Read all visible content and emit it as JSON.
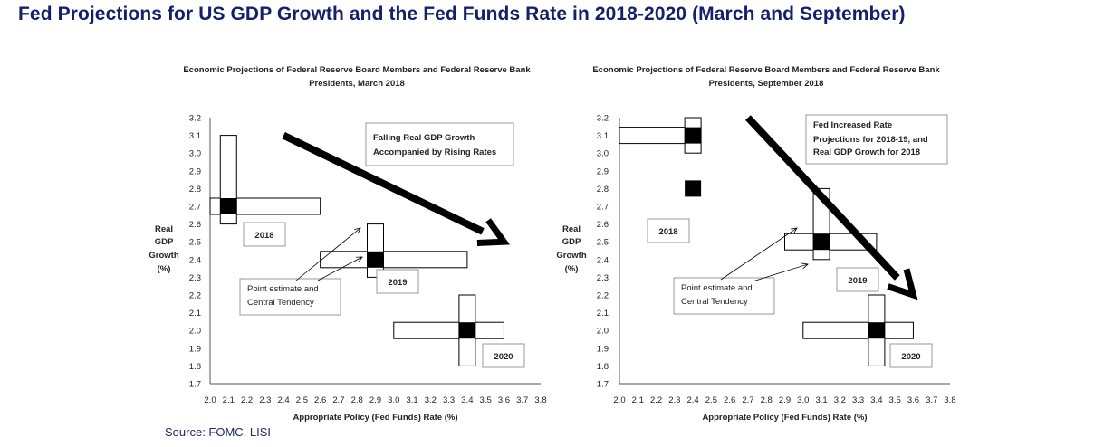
{
  "page": {
    "title": "Fed Projections for US GDP Growth and the Fed Funds Rate in 2018-2020 (March and September)",
    "source": "Source: FOMC, LISI"
  },
  "colors": {
    "title": "#14206b",
    "ink": "#000000",
    "box_border": "#999999"
  },
  "chart_data": [
    {
      "type": "scatter",
      "title_lines": [
        "Economic Projections of Federal Reserve Board Members and Federal Reserve Bank",
        "Presidents, March 2018"
      ],
      "ylabel_lines": [
        "Real",
        "GDP",
        "Growth",
        "(%)"
      ],
      "xlabel": "Appropriate Policy (Fed Funds) Rate (%)",
      "x_ticks": [
        "2.0",
        "2.1",
        "2.2",
        "2.3",
        "2.4",
        "2.5",
        "2.6",
        "2.7",
        "2.8",
        "2.9",
        "3.0",
        "3.1",
        "3.2",
        "3.3",
        "3.4",
        "3.5",
        "3.6",
        "3.7",
        "3.8"
      ],
      "y_ticks": [
        "3.2",
        "3.1",
        "3.0",
        "2.9",
        "2.8",
        "2.7",
        "2.6",
        "2.5",
        "2.4",
        "2.3",
        "2.2",
        "2.1",
        "2.0",
        "1.9",
        "1.8",
        "1.7"
      ],
      "xlim": [
        2.0,
        3.8
      ],
      "ylim": [
        1.7,
        3.2
      ],
      "grid": false,
      "series": [
        {
          "name": "2018",
          "point": [
            2.1,
            2.7
          ],
          "rate_range": [
            2.0,
            2.6
          ],
          "growth_range": [
            2.6,
            3.1
          ]
        },
        {
          "name": "2019",
          "point": [
            2.9,
            2.4
          ],
          "rate_range": [
            2.6,
            3.4
          ],
          "growth_range": [
            2.3,
            2.6
          ]
        },
        {
          "name": "2020",
          "point": [
            3.4,
            2.0
          ],
          "rate_range": [
            3.0,
            3.6
          ],
          "growth_range": [
            1.8,
            2.2
          ]
        }
      ],
      "annotations": [
        {
          "lines": [
            "Falling Real GDP Growth",
            "Accompanied by Rising Rates"
          ],
          "arrow_from": [
            2.4,
            3.1
          ],
          "arrow_to": [
            3.6,
            2.5
          ]
        },
        {
          "lines": [
            "Point estimate and",
            "Central Tendency"
          ]
        }
      ]
    },
    {
      "type": "scatter",
      "title_lines": [
        "Economic Projections of Federal Reserve Board Members and Federal Reserve Bank",
        "Presidents, September 2018"
      ],
      "ylabel_lines": [
        "Real",
        "GDP",
        "Growth",
        "(%)"
      ],
      "xlabel": "Appropriate Policy (Fed Funds) Rate (%)",
      "x_ticks": [
        "2.0",
        "2.1",
        "2.2",
        "2.3",
        "2.4",
        "2.5",
        "2.6",
        "2.7",
        "2.8",
        "2.9",
        "3.0",
        "3.1",
        "3.2",
        "3.3",
        "3.4",
        "3.5",
        "3.6",
        "3.7",
        "3.8"
      ],
      "y_ticks": [
        "3.2",
        "3.1",
        "3.0",
        "2.9",
        "2.8",
        "2.7",
        "2.6",
        "2.5",
        "2.4",
        "2.3",
        "2.2",
        "2.1",
        "2.0",
        "1.9",
        "1.8",
        "1.7"
      ],
      "xlim": [
        2.0,
        3.8
      ],
      "ylim": [
        1.7,
        3.2
      ],
      "grid": false,
      "series": [
        {
          "name": "2018",
          "point": [
            2.4,
            3.1
          ],
          "point_extra": [
            2.4,
            2.8
          ],
          "rate_range": [
            2.0,
            2.4
          ],
          "growth_range": [
            3.0,
            3.2
          ]
        },
        {
          "name": "2019",
          "point": [
            3.1,
            2.5
          ],
          "rate_range": [
            2.9,
            3.4
          ],
          "growth_range": [
            2.4,
            2.8
          ]
        },
        {
          "name": "2020",
          "point": [
            3.4,
            2.0
          ],
          "rate_range": [
            3.0,
            3.6
          ],
          "growth_range": [
            1.8,
            2.2
          ]
        }
      ],
      "annotations": [
        {
          "lines": [
            "Fed Increased Rate",
            "Projections for 2018-19, and",
            "Real GDP Growth for 2018"
          ],
          "arrow_from": [
            2.7,
            3.2
          ],
          "arrow_to": [
            3.6,
            2.2
          ]
        },
        {
          "lines": [
            "Point estimate and",
            "Central Tendency"
          ]
        }
      ]
    }
  ]
}
